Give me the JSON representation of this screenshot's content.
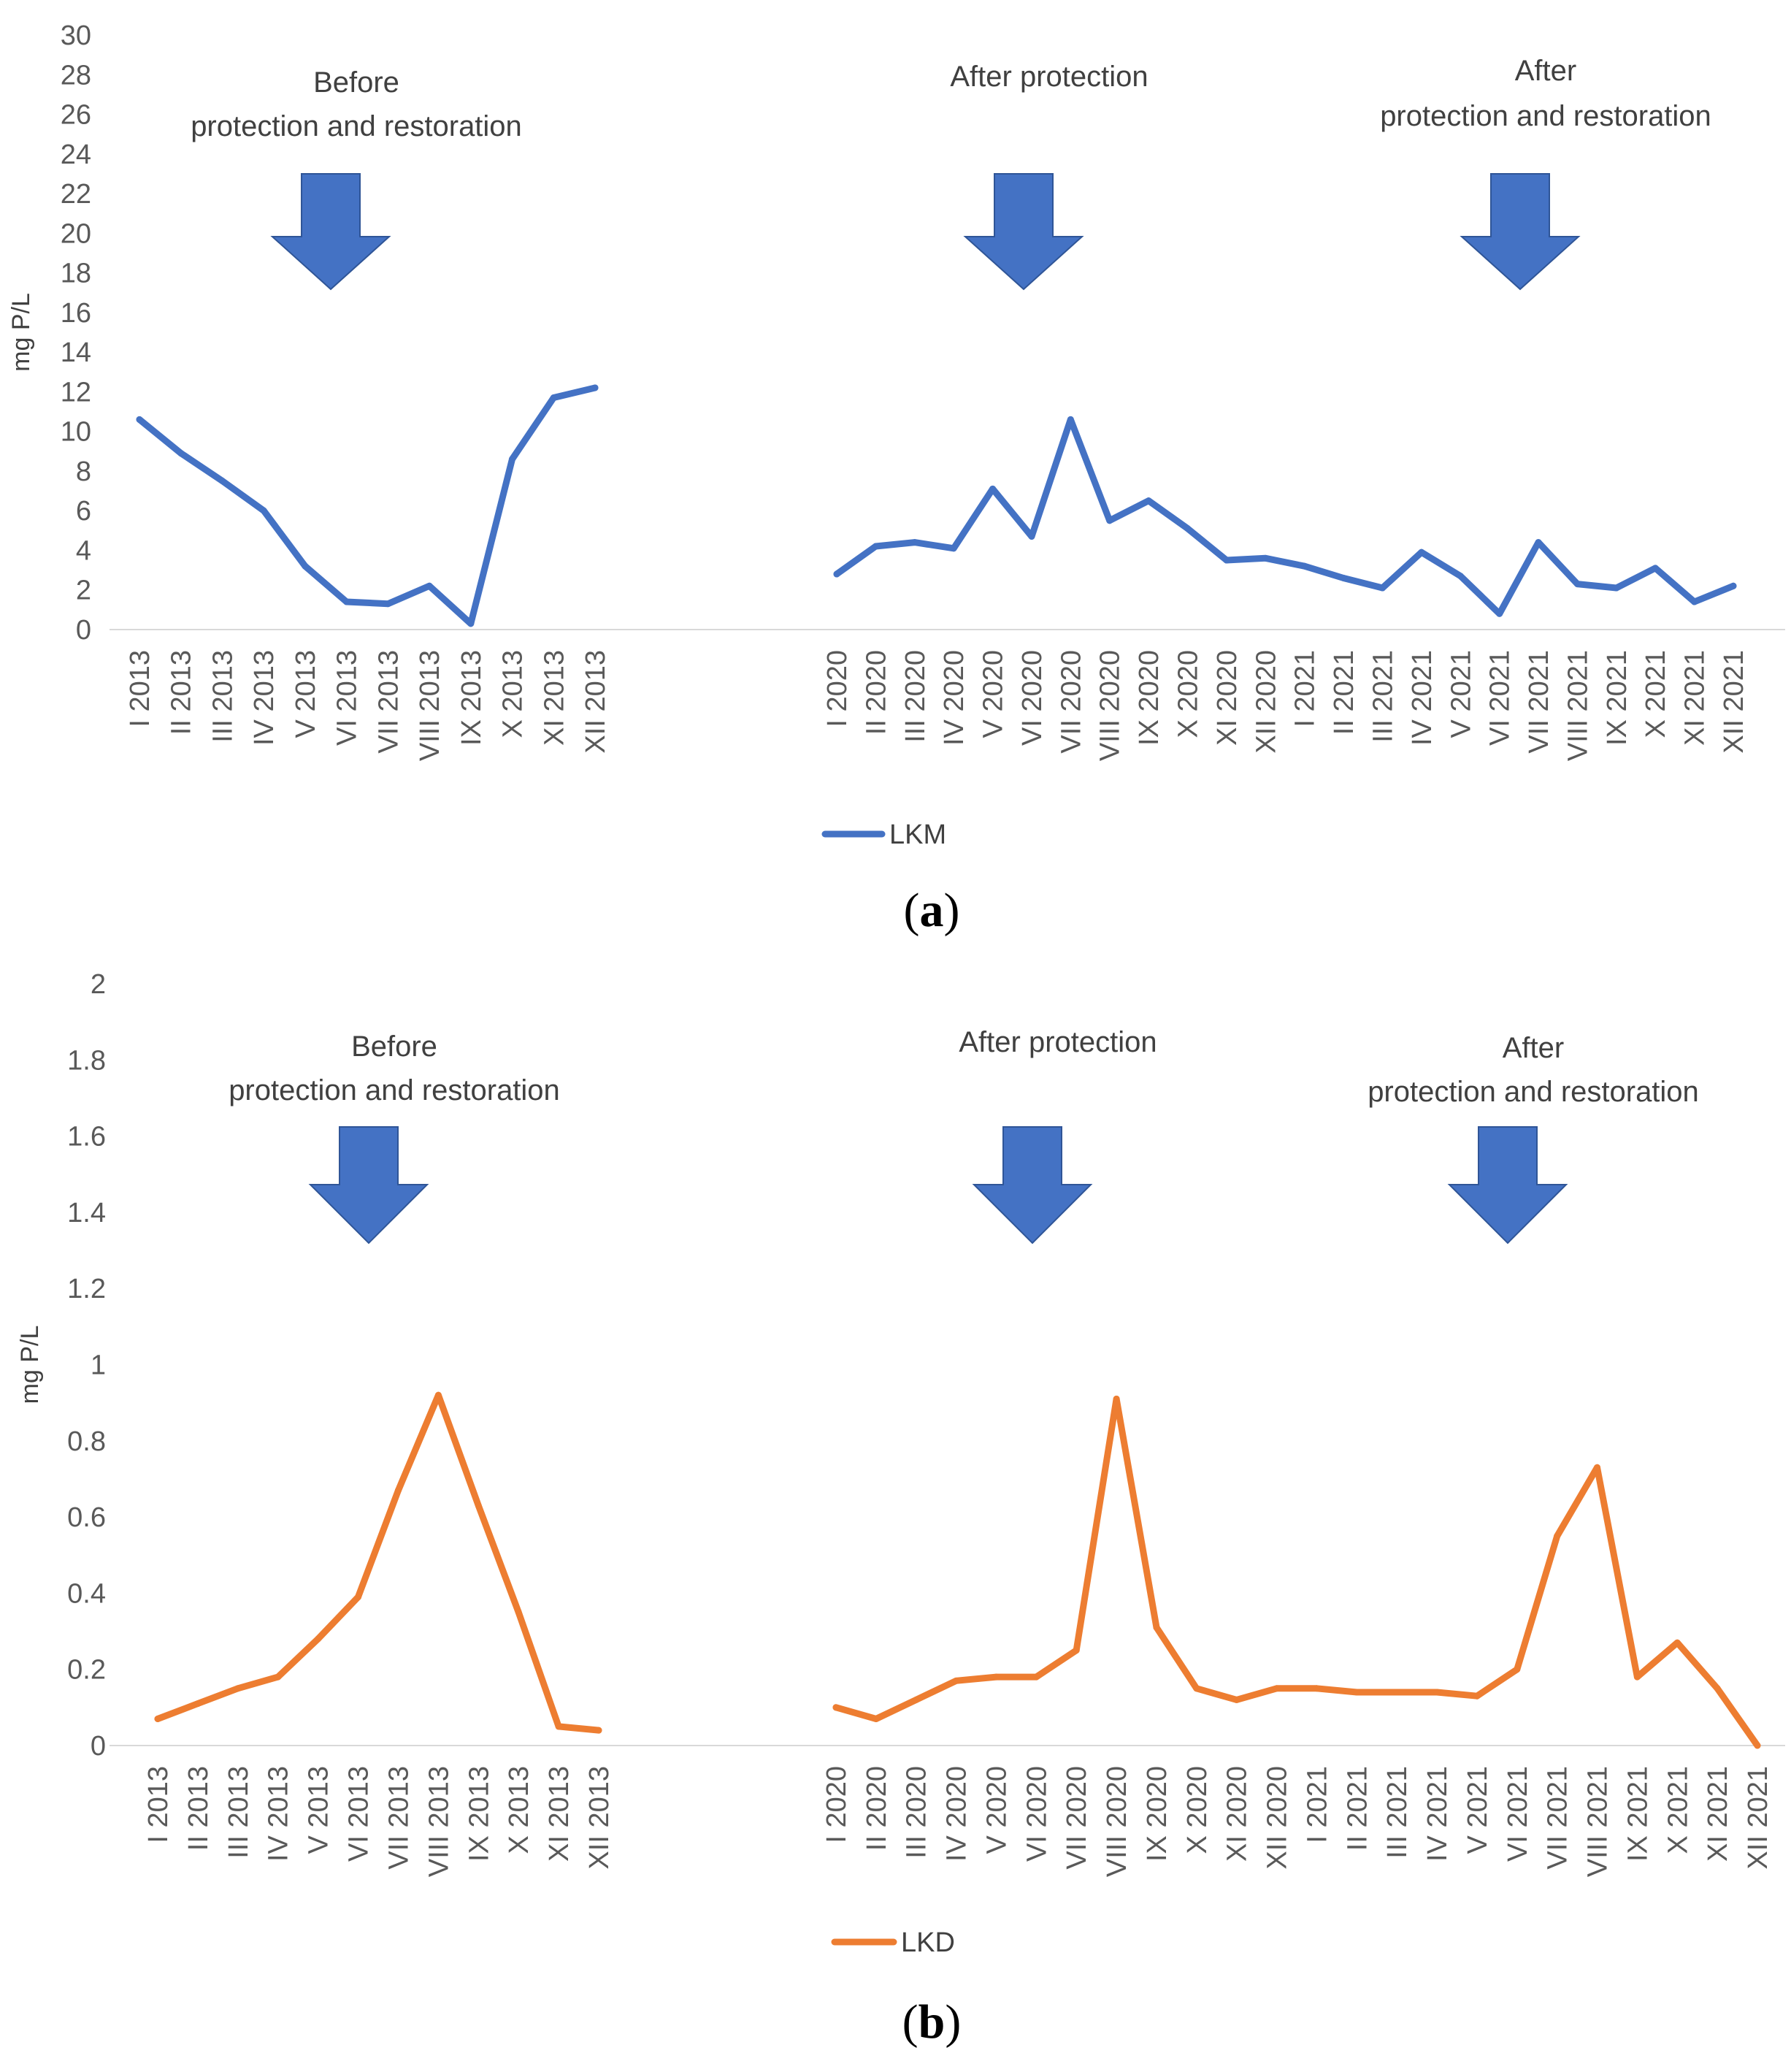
{
  "chart_data": [
    {
      "type": "line",
      "panel_label": "a",
      "ylabel": "mg P/L",
      "ylim": [
        0,
        30
      ],
      "ytick_step": 2,
      "ytick_labels": [
        "0",
        "2",
        "4",
        "6",
        "8",
        "10",
        "12",
        "14",
        "16",
        "18",
        "20",
        "22",
        "24",
        "26",
        "28",
        "30"
      ],
      "series_color": "#4472C4",
      "legend": "LKM",
      "legend_position": "bottom",
      "annotation_color": "#4472C4",
      "annotations": [
        {
          "lines": [
            "Before",
            "protection and restoration"
          ]
        },
        {
          "lines": [
            "After protection"
          ]
        },
        {
          "lines": [
            "After",
            "protection and restoration"
          ]
        }
      ],
      "groups": [
        {
          "categories": [
            "I 2013",
            "II 2013",
            "III 2013",
            "IV 2013",
            "V 2013",
            "VI 2013",
            "VII 2013",
            "VIII 2013",
            "IX 2013",
            "X 2013",
            "XI 2013",
            "XII 2013"
          ],
          "values": [
            10.6,
            8.9,
            7.5,
            6.0,
            3.2,
            1.4,
            1.3,
            2.2,
            0.3,
            8.6,
            11.7,
            12.2
          ]
        },
        {
          "categories": [
            "I 2020",
            "II 2020",
            "III 2020",
            "IV 2020",
            "V 2020",
            "VI 2020",
            "VII 2020",
            "VIII 2020",
            "IX 2020",
            "X 2020",
            "XI 2020",
            "XII 2020",
            "I 2021",
            "II 2021",
            "III 2021",
            "IV 2021",
            "V 2021",
            "VI 2021",
            "VII 2021",
            "VIII 2021",
            "IX 2021",
            "X 2021",
            "XI 2021",
            "XII 2021"
          ],
          "values": [
            2.8,
            4.2,
            4.4,
            4.1,
            7.1,
            4.7,
            10.6,
            5.5,
            6.5,
            5.1,
            3.5,
            3.6,
            3.2,
            2.6,
            2.1,
            3.9,
            2.7,
            0.8,
            4.4,
            2.3,
            2.1,
            3.1,
            1.4,
            2.2
          ]
        }
      ]
    },
    {
      "type": "line",
      "panel_label": "b",
      "ylabel": "mg P/L",
      "ylim": [
        0,
        2
      ],
      "ytick_step": 0.2,
      "ytick_labels": [
        "0",
        "0.2",
        "0.4",
        "0.6",
        "0.8",
        "1",
        "1.2",
        "1.4",
        "1.6",
        "1.8",
        "2"
      ],
      "series_color": "#ED7D31",
      "legend": "LKD",
      "legend_position": "bottom",
      "annotation_color": "#4472C4",
      "annotations": [
        {
          "lines": [
            "Before",
            "protection and restoration"
          ]
        },
        {
          "lines": [
            "After protection"
          ]
        },
        {
          "lines": [
            "After",
            "protection and restoration"
          ]
        }
      ],
      "groups": [
        {
          "categories": [
            "I 2013",
            "II 2013",
            "III 2013",
            "IV 2013",
            "V 2013",
            "VI 2013",
            "VII 2013",
            "VIII 2013",
            "IX 2013",
            "X 2013",
            "XI 2013",
            "XII 2013"
          ],
          "values": [
            0.07,
            0.11,
            0.15,
            0.18,
            0.28,
            0.39,
            0.67,
            0.92,
            0.63,
            0.35,
            0.05,
            0.04
          ]
        },
        {
          "categories": [
            "I 2020",
            "II 2020",
            "III 2020",
            "IV 2020",
            "V 2020",
            "VI 2020",
            "VII 2020",
            "VIII 2020",
            "IX 2020",
            "X 2020",
            "XI 2020",
            "XII 2020",
            "I 2021",
            "II 2021",
            "III 2021",
            "IV 2021",
            "V 2021",
            "VI 2021",
            "VII 2021",
            "VIII 2021",
            "IX 2021",
            "X 2021",
            "XI 2021",
            "XII 2021"
          ],
          "values": [
            0.1,
            0.07,
            0.12,
            0.17,
            0.18,
            0.18,
            0.25,
            0.91,
            0.31,
            0.15,
            0.12,
            0.15,
            0.15,
            0.14,
            0.14,
            0.14,
            0.13,
            0.2,
            0.55,
            0.73,
            0.18,
            0.27,
            0.15,
            0.0
          ]
        }
      ]
    }
  ]
}
